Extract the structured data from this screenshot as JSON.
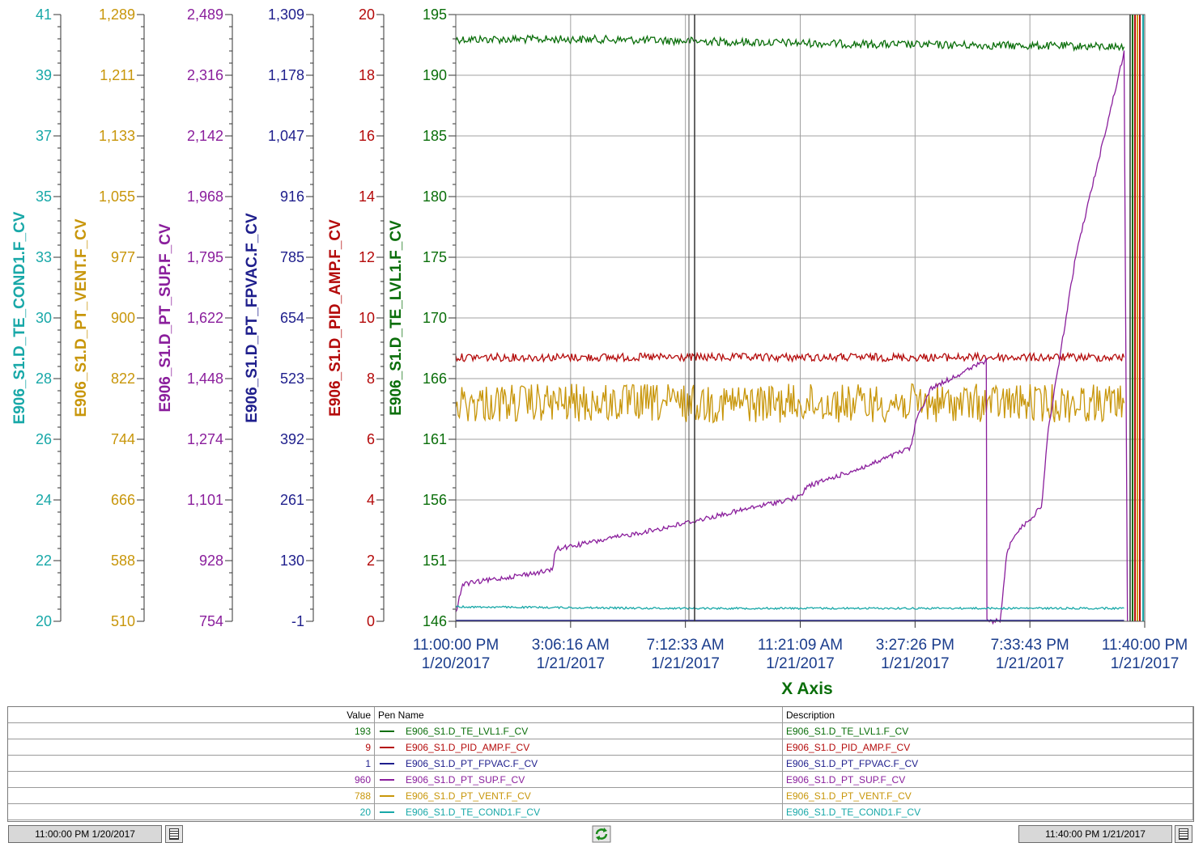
{
  "colors": {
    "cond1": "#18a8a8",
    "vent": "#c8960a",
    "sup": "#8a1e9c",
    "fpvac": "#1e1e8c",
    "pid": "#b40a0a",
    "lvl1": "#0a6e0a",
    "grid": "#a0a0a0"
  },
  "y_axes": [
    {
      "name": "E906_S1.D_TE_COND1.F_CV",
      "color": "#18a8a8",
      "ticks": [
        "41",
        "39",
        "37",
        "35",
        "33",
        "30",
        "28",
        "26",
        "24",
        "22",
        "20"
      ]
    },
    {
      "name": "E906_S1.D_PT_VENT.F_CV",
      "color": "#c8960a",
      "ticks": [
        "1,289",
        "1,211",
        "1,133",
        "1,055",
        "977",
        "900",
        "822",
        "744",
        "666",
        "588",
        "510"
      ]
    },
    {
      "name": "E906_S1.D_PT_SUP.F_CV",
      "color": "#8a1e9c",
      "ticks": [
        "2,489",
        "2,316",
        "2,142",
        "1,968",
        "1,795",
        "1,622",
        "1,448",
        "1,274",
        "1,101",
        "928",
        "754"
      ]
    },
    {
      "name": "E906_S1.D_PT_FPVAC.F_CV",
      "color": "#1e1e8c",
      "ticks": [
        "1,309",
        "1,178",
        "1,047",
        "916",
        "785",
        "654",
        "523",
        "392",
        "261",
        "130",
        "-1"
      ]
    },
    {
      "name": "E906_S1.D_PID_AMP.F_CV",
      "color": "#b40a0a",
      "ticks": [
        "20",
        "18",
        "16",
        "14",
        "12",
        "10",
        "8",
        "6",
        "4",
        "2",
        "0"
      ]
    },
    {
      "name": "E906_S1.D_TE_LVL1.F_CV",
      "color": "#0a6e0a",
      "ticks": [
        "195",
        "190",
        "185",
        "180",
        "175",
        "170",
        "166",
        "161",
        "156",
        "151",
        "146"
      ]
    }
  ],
  "x_axis": {
    "title": "X Axis",
    "ticks": [
      {
        "time": "11:00:00 PM",
        "date": "1/20/2017"
      },
      {
        "time": "3:06:16 AM",
        "date": "1/21/2017"
      },
      {
        "time": "7:12:33 AM",
        "date": "1/21/2017"
      },
      {
        "time": "11:21:09 AM",
        "date": "1/21/2017"
      },
      {
        "time": "3:27:26 PM",
        "date": "1/21/2017"
      },
      {
        "time": "7:33:43 PM",
        "date": "1/21/2017"
      },
      {
        "time": "11:40:00 PM",
        "date": "1/21/2017"
      }
    ]
  },
  "chart_data": {
    "type": "line",
    "x_range": [
      "11:00:00 PM 1/20/2017",
      "11:40:00 PM 1/21/2017"
    ],
    "grid": true,
    "series": [
      {
        "name": "E906_S1.D_TE_LVL1.F_CV",
        "axis_index": 5,
        "ylim": [
          146,
          195
        ],
        "x": [
          0,
          0.2,
          0.4,
          0.6,
          0.8,
          0.97
        ],
        "y": [
          193,
          193,
          192.8,
          192.6,
          192.5,
          192.4
        ]
      },
      {
        "name": "E906_S1.D_PID_AMP.F_CV",
        "axis_index": 4,
        "ylim": [
          0,
          20
        ],
        "x": [
          0,
          0.2,
          0.4,
          0.6,
          0.8,
          0.97
        ],
        "y": [
          8.7,
          8.7,
          8.7,
          8.7,
          8.7,
          8.7
        ]
      },
      {
        "name": "E906_S1.D_PT_VENT.F_CV",
        "axis_index": 1,
        "ylim": [
          510,
          1289
        ],
        "x": [
          0,
          0.2,
          0.4,
          0.6,
          0.8,
          0.97
        ],
        "y": [
          790,
          790,
          790,
          790,
          790,
          790
        ]
      },
      {
        "name": "E906_S1.D_PT_SUP.F_CV",
        "axis_index": 2,
        "ylim": [
          754,
          2489
        ],
        "x": [
          0,
          0.01,
          0.14,
          0.145,
          0.3,
          0.5,
          0.51,
          0.6,
          0.66,
          0.67,
          0.69,
          0.77,
          0.771,
          0.79,
          0.8,
          0.81,
          0.85,
          0.86,
          0.9,
          0.97,
          0.975
        ],
        "y": [
          780,
          860,
          900,
          960,
          1020,
          1110,
          1140,
          1200,
          1250,
          1340,
          1420,
          1500,
          754,
          754,
          950,
          1000,
          1080,
          1300,
          1800,
          2380,
          754
        ]
      },
      {
        "name": "E906_S1.D_PT_FPVAC.F_CV",
        "axis_index": 3,
        "ylim": [
          -1,
          1309
        ],
        "x": [
          0,
          0.5,
          0.97
        ],
        "y": [
          1,
          1,
          1
        ]
      },
      {
        "name": "E906_S1.D_TE_COND1.F_CV",
        "axis_index": 0,
        "ylim": [
          20,
          41
        ],
        "x": [
          0,
          0.3,
          0.6,
          0.97
        ],
        "y": [
          20.5,
          20.45,
          20.45,
          20.45
        ]
      }
    ]
  },
  "legend": {
    "headers": {
      "value": "Value",
      "pen": "Pen Name",
      "description": "Description"
    },
    "rows": [
      {
        "value": "193",
        "pen": "E906_S1.D_TE_LVL1.F_CV",
        "description": "E906_S1.D_TE_LVL1.F_CV",
        "color": "#0a6e0a"
      },
      {
        "value": "9",
        "pen": "E906_S1.D_PID_AMP.F_CV",
        "description": "E906_S1.D_PID_AMP.F_CV",
        "color": "#b40a0a"
      },
      {
        "value": "1",
        "pen": "E906_S1.D_PT_FPVAC.F_CV",
        "description": "E906_S1.D_PT_FPVAC.F_CV",
        "color": "#1e1e8c"
      },
      {
        "value": "960",
        "pen": "E906_S1.D_PT_SUP.F_CV",
        "description": "E906_S1.D_PT_SUP.F_CV",
        "color": "#8a1e9c"
      },
      {
        "value": "788",
        "pen": "E906_S1.D_PT_VENT.F_CV",
        "description": "E906_S1.D_PT_VENT.F_CV",
        "color": "#c8960a"
      },
      {
        "value": "20",
        "pen": "E906_S1.D_TE_COND1.F_CV",
        "description": "E906_S1.D_TE_COND1.F_CV",
        "color": "#18a8a8"
      }
    ]
  },
  "footer": {
    "start_time": "11:00:00 PM 1/20/2017",
    "end_time": "11:40:00 PM 1/21/2017",
    "start_calendar_icon": "calendar-icon",
    "end_calendar_icon": "calendar-icon",
    "refresh_icon": "refresh-icon"
  }
}
